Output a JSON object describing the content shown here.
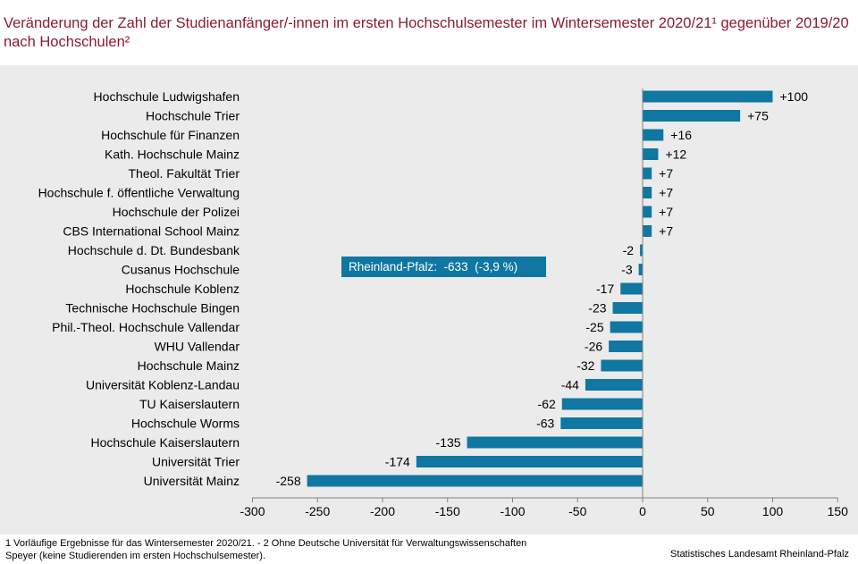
{
  "title": "Veränderung der Zahl der Studienanfänger/-innen im ersten Hochschulsemester im Wintersemester 2020/21¹ gegenüber 2019/20 nach Hochschulen²",
  "footnote": "1 Vorläufige Ergebnisse für das Wintersemester 2020/21. - 2 Ohne Deutsche Universität für Verwaltungswissenschaften Speyer (keine Studierenden im ersten Hochschulsemester).",
  "source": "Statistisches Landesamt Rheinland-Pfalz",
  "colors": {
    "bar": "#0f77a1",
    "title": "#8c1b2f",
    "background": "#ebebeb",
    "axis": "#808080"
  },
  "chart_data": {
    "type": "bar",
    "orientation": "horizontal",
    "title": "Veränderung der Zahl der Studienanfänger/-innen im ersten Hochschulsemester im Wintersemester 2020/21¹ gegenüber 2019/20 nach Hochschulen²",
    "categories": [
      "Hochschule Ludwigshafen",
      "Hochschule Trier",
      "Hochschule für Finanzen",
      "Kath. Hochschule Mainz",
      "Theol. Fakultät Trier",
      "Hochschule f. öffentliche Verwaltung",
      "Hochschule der Polizei",
      "CBS International School Mainz",
      "Hochschule d. Dt. Bundesbank",
      "Cusanus Hochschule",
      "Hochschule Koblenz",
      "Technische Hochschule Bingen",
      "Phil.-Theol. Hochschule Vallendar",
      "WHU Vallendar",
      "Hochschule Mainz",
      "Universität Koblenz-Landau",
      "TU Kaiserslautern",
      "Hochschule Worms",
      "Hochschule Kaiserslautern",
      "Universität Trier",
      "Universität Mainz"
    ],
    "values": [
      100,
      75,
      16,
      12,
      7,
      7,
      7,
      7,
      -2,
      -3,
      -17,
      -23,
      -25,
      -26,
      -32,
      -44,
      -62,
      -63,
      -135,
      -174,
      -258
    ],
    "value_labels": [
      "+100",
      "+75",
      "+16",
      "+12",
      "+7",
      "+7",
      "+7",
      "+7",
      "-2",
      "-3",
      "-17",
      "-23",
      "-25",
      "-26",
      "-32",
      "-44",
      "-62",
      "-63",
      "-135",
      "-174",
      "-258"
    ],
    "xlim": [
      -300,
      150
    ],
    "xticks": [
      -300,
      -250,
      -200,
      -150,
      -100,
      -50,
      0,
      50,
      100,
      150
    ],
    "annotation": "Rheinland-Pfalz:  -633  (-3,9 %)",
    "xlabel": "",
    "ylabel": ""
  }
}
